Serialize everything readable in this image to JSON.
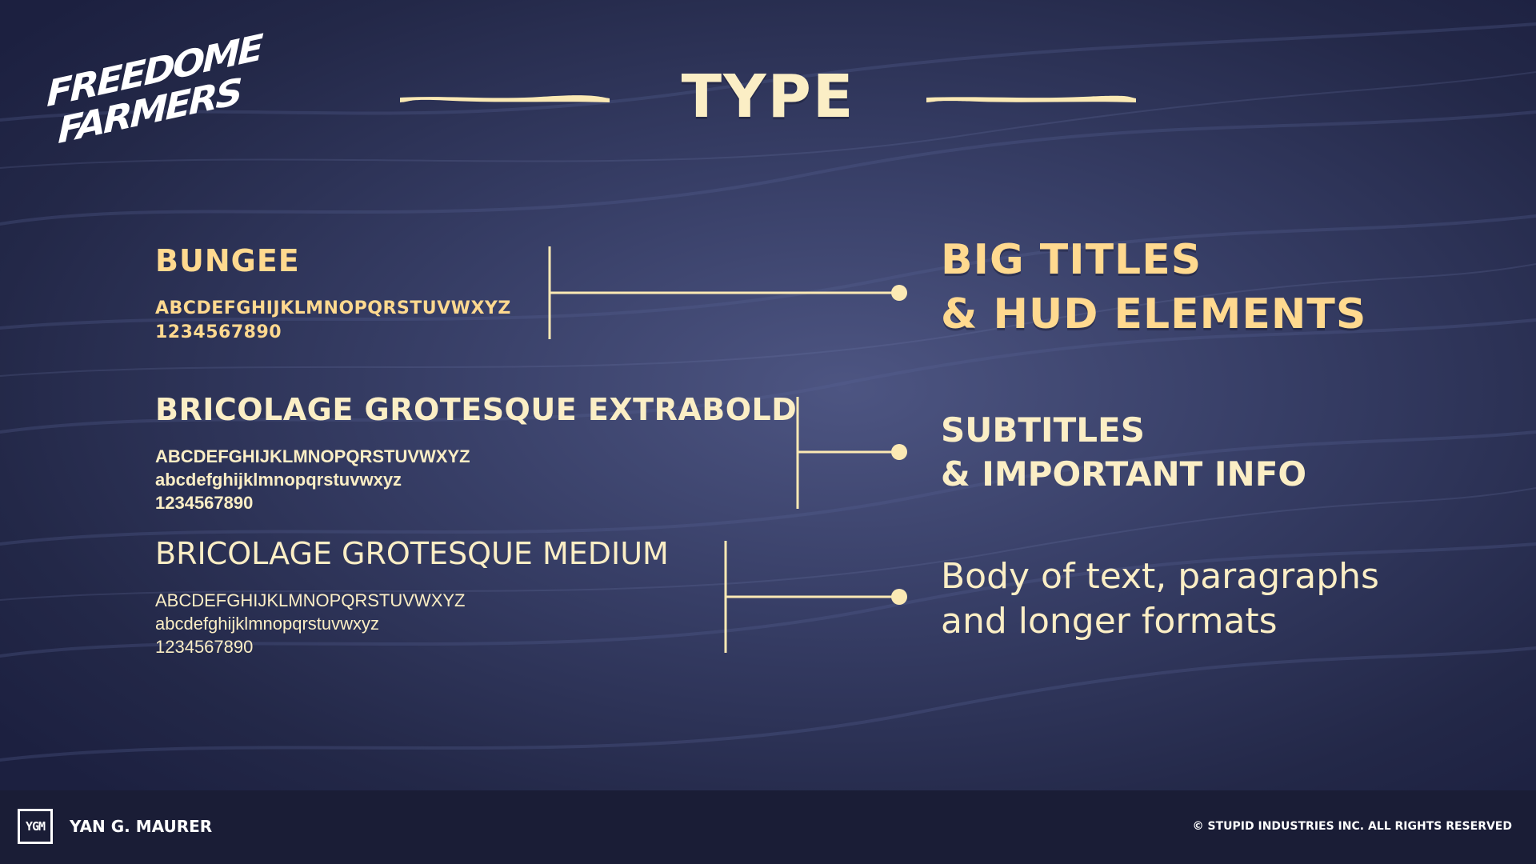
{
  "brand": {
    "logo_line1": "FREEDOME",
    "logo_line2": "FARMERS"
  },
  "header": {
    "title": "TYPE",
    "accent_color": "#fbe9b4"
  },
  "fonts": [
    {
      "name": "BUNGEE",
      "samples": [
        "ABCDEFGHIJKLMNOPQRSTUVWXYZ",
        "1234567890"
      ],
      "usage": [
        "BIG TITLES",
        "& HUD ELEMENTS"
      ],
      "color": "#ffd98f"
    },
    {
      "name": "BRICOLAGE GROTESQUE EXTRABOLD",
      "samples": [
        "ABCDEFGHIJKLMNOPQRSTUVWXYZ",
        "abcdefghijklmnopqrstuvwxyz",
        "1234567890"
      ],
      "usage": [
        "SUBTITLES",
        "& IMPORTANT INFO"
      ],
      "color": "#fbeec5"
    },
    {
      "name": "BRICOLAGE GROTESQUE MEDIUM",
      "samples": [
        "ABCDEFGHIJKLMNOPQRSTUVWXYZ",
        "abcdefghijklmnopqrstuvwxyz",
        "1234567890"
      ],
      "usage": [
        "Body of text, paragraphs",
        "and longer formats"
      ],
      "color": "#fbeec5"
    }
  ],
  "footer": {
    "logo_mark": "YGM",
    "author": "YAN G. MAURER",
    "copyright": "© STUPID INDUSTRIES INC. ALL RIGHTS RESERVED"
  },
  "colors": {
    "background": "#2f355a",
    "text_cream": "#fbeec5",
    "text_gold": "#ffd98f",
    "footer_bg": "#1a1d36"
  }
}
